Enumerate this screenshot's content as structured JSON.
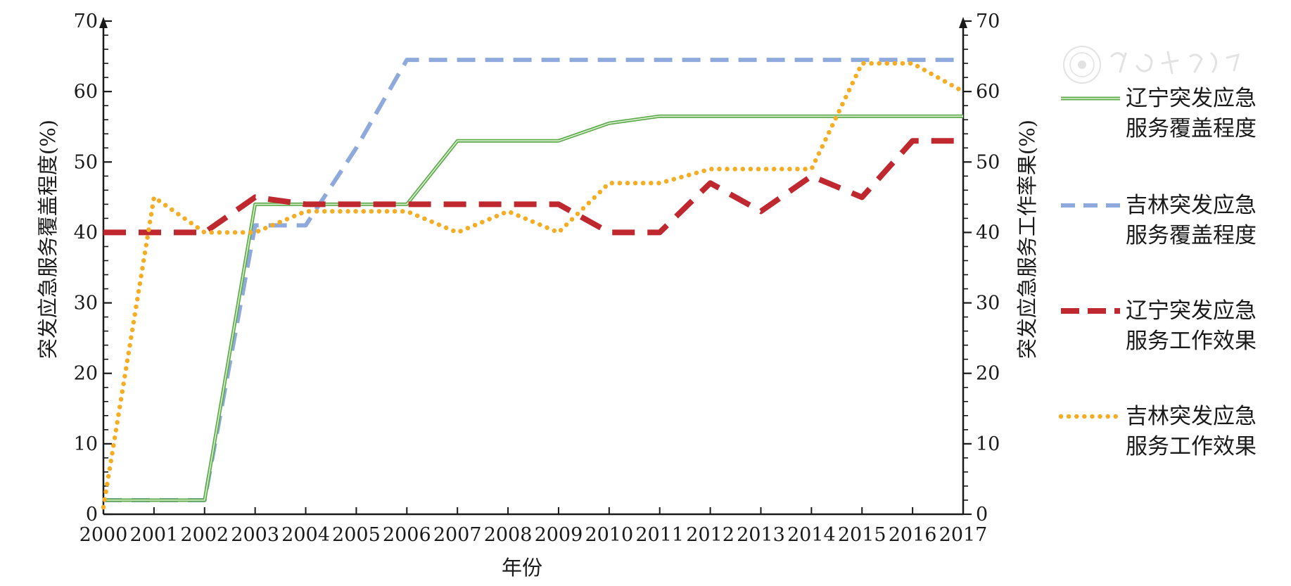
{
  "chart_data": {
    "type": "line",
    "xlabel": "年份",
    "ylabel_left": "突发应急服务覆盖程度(%)",
    "ylabel_right": "突发应急服务工作率果(%)",
    "xlim": [
      2000,
      2017
    ],
    "ylim_left": [
      0,
      70
    ],
    "ylim_right": [
      0,
      70
    ],
    "x_ticks": [
      "2000",
      "2001",
      "2002",
      "2003",
      "2004",
      "2005",
      "2006",
      "2007",
      "2008",
      "2009",
      "2010",
      "2011",
      "2012",
      "2013",
      "2014",
      "2015",
      "2016",
      "2017"
    ],
    "y_ticks": [
      "0",
      "10",
      "20",
      "30",
      "40",
      "50",
      "60",
      "70"
    ],
    "grid": false,
    "legend_position": "right",
    "series": [
      {
        "name": "辽宁突发应急服务覆盖程度",
        "legend_lines": [
          "辽宁突发应急",
          "服务覆盖程度"
        ],
        "style": "solid",
        "color": "#5fab4c",
        "x": [
          2000,
          2002,
          2003,
          2006,
          2007,
          2009,
          2010,
          2011,
          2017
        ],
        "y": [
          2,
          2,
          44,
          44,
          53,
          53,
          55.5,
          56.5,
          56.5
        ]
      },
      {
        "name": "吉林突发应急服务覆盖程度",
        "legend_lines": [
          "吉林突发应急",
          "服务覆盖程度"
        ],
        "style": "dashed",
        "color": "#8ea9dc",
        "x": [
          2000,
          2002,
          2003,
          2004,
          2005,
          2006,
          2017
        ],
        "y": [
          2,
          2,
          41,
          41,
          52,
          64.5,
          64.5
        ]
      },
      {
        "name": "辽宁突发应急服务工作效果",
        "legend_lines": [
          "辽宁突发应急",
          "服务工作效果"
        ],
        "style": "longdash",
        "color": "#c0282f",
        "x": [
          2000,
          2002,
          2003,
          2004,
          2009,
          2010,
          2011,
          2012,
          2013,
          2014,
          2015,
          2016,
          2017
        ],
        "y": [
          40,
          40,
          45,
          44,
          44,
          40,
          40,
          47,
          43,
          48,
          45,
          53,
          53
        ]
      },
      {
        "name": "吉林突发应急服务工作效果",
        "legend_lines": [
          "吉林突发应急",
          "服务工作效果"
        ],
        "style": "dotted",
        "color": "#f5ad24",
        "x": [
          2000,
          2001,
          2002,
          2003,
          2004,
          2005,
          2006,
          2007,
          2008,
          2009,
          2010,
          2011,
          2012,
          2013,
          2014,
          2015,
          2016,
          2017
        ],
        "y": [
          1,
          45,
          40,
          40,
          43,
          43,
          43,
          40,
          43,
          40,
          47,
          47,
          49,
          49,
          49,
          64,
          64,
          60
        ]
      }
    ]
  }
}
